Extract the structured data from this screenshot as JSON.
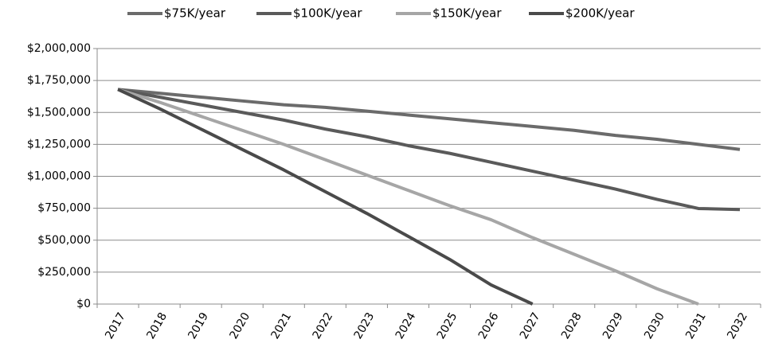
{
  "chart_data": {
    "type": "line",
    "categories": [
      "2017",
      "2018",
      "2019",
      "2020",
      "2021",
      "2022",
      "2023",
      "2024",
      "2025",
      "2026",
      "2027",
      "2028",
      "2029",
      "2030",
      "2031",
      "2032"
    ],
    "series": [
      {
        "name": "$75K/year",
        "color": "#6b6b6b",
        "values": [
          1680000,
          1650000,
          1620000,
          1590000,
          1560000,
          1540000,
          1510000,
          1480000,
          1450000,
          1420000,
          1390000,
          1360000,
          1320000,
          1290000,
          1250000,
          1210000
        ]
      },
      {
        "name": "$100K/year",
        "color": "#5a5a5a",
        "values": [
          1680000,
          1620000,
          1560000,
          1500000,
          1440000,
          1370000,
          1310000,
          1240000,
          1180000,
          1110000,
          1040000,
          970000,
          900000,
          820000,
          748000,
          740000
        ]
      },
      {
        "name": "$150K/year",
        "color": "#a6a6a6",
        "values": [
          1680000,
          1580000,
          1470000,
          1360000,
          1250000,
          1130000,
          1010000,
          890000,
          770000,
          660000,
          520000,
          390000,
          260000,
          120000,
          0,
          null
        ]
      },
      {
        "name": "$200K/year",
        "color": "#4a4a4a",
        "values": [
          1680000,
          1530000,
          1370000,
          1210000,
          1050000,
          880000,
          710000,
          530000,
          350000,
          150000,
          0,
          null,
          null,
          null,
          null,
          null
        ]
      }
    ],
    "ylim": [
      0,
      2000000
    ],
    "yticks": [
      {
        "value": 0,
        "label": "$0"
      },
      {
        "value": 250000,
        "label": "$250,000"
      },
      {
        "value": 500000,
        "label": "$500,000"
      },
      {
        "value": 750000,
        "label": "$750,000"
      },
      {
        "value": 1000000,
        "label": "$1,000,000"
      },
      {
        "value": 1250000,
        "label": "$1,250,000"
      },
      {
        "value": 1500000,
        "label": "$1,500,000"
      },
      {
        "value": 1750000,
        "label": "$1,750,000"
      },
      {
        "value": 2000000,
        "label": "$2,000,000"
      }
    ],
    "grid": true,
    "legend": "top"
  }
}
